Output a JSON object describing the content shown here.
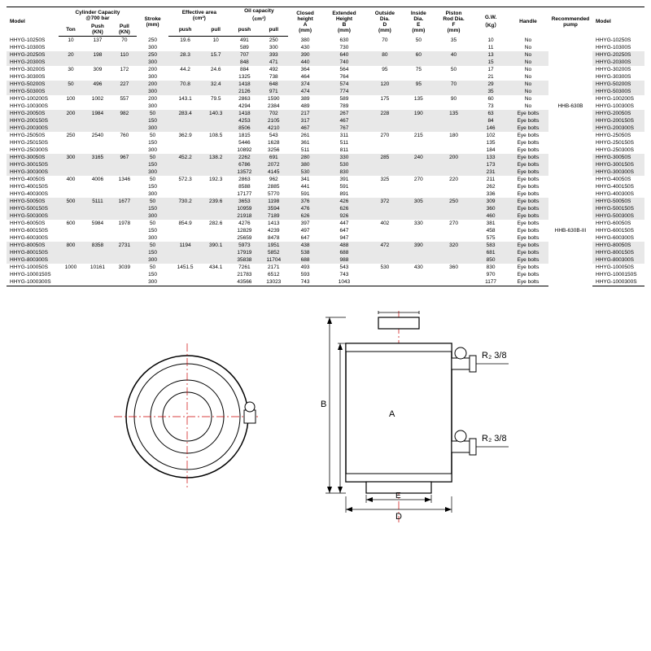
{
  "table": {
    "header1": [
      "Model",
      "Cylinder Capacity\n@700 bar",
      "",
      "",
      "Stroke\n(mm)",
      "Effective area\n(cm²)",
      "",
      "Oil capacity\n（cm³）",
      "",
      "Closed\nheight\nA\n(mm)",
      "Extended\nHeight\nB\n(mm)",
      "Outside\nDia.\nD\n(mm)",
      "Inside\nDia.\nE\n(mm)",
      "Piston\nRod Dia.\nF\n(mm)",
      "G.W.\n（Kg）",
      "Handle",
      "Recommended\npump",
      "Model"
    ],
    "header2": [
      "",
      "Ton",
      "Push\n(KN)",
      "Pull\n(KN)",
      "",
      "push",
      "pull",
      "push",
      "pull",
      "",
      "",
      "",
      "",
      "",
      "",
      "",
      "",
      ""
    ],
    "groups": [
      {
        "alt": false,
        "pump": "",
        "rows": [
          [
            "HHYG-10250S",
            "10",
            "137",
            "70",
            "250",
            "19.6",
            "10",
            "491",
            "250",
            "380",
            "630",
            "70",
            "50",
            "35",
            "10",
            "No",
            "",
            "HHYG-10250S"
          ],
          [
            "HHYG-10300S",
            "",
            "",
            "",
            "300",
            "",
            "",
            "589",
            "300",
            "430",
            "730",
            "",
            "",
            "",
            "11",
            "No",
            "",
            "HHYG-10300S"
          ]
        ]
      },
      {
        "alt": true,
        "pump": "",
        "rows": [
          [
            "HHYG-20250S",
            "20",
            "198",
            "110",
            "250",
            "28.3",
            "15.7",
            "707",
            "393",
            "390",
            "640",
            "80",
            "60",
            "40",
            "13",
            "No",
            "",
            "HHYG-20250S"
          ],
          [
            "HHYG-20300S",
            "",
            "",
            "",
            "300",
            "",
            "",
            "848",
            "471",
            "440",
            "740",
            "",
            "",
            "",
            "15",
            "No",
            "",
            "HHYG-20300S"
          ]
        ]
      },
      {
        "alt": false,
        "pump": "",
        "rows": [
          [
            "HHYG-30200S",
            "30",
            "309",
            "172",
            "200",
            "44.2",
            "24.6",
            "884",
            "492",
            "364",
            "564",
            "95",
            "75",
            "50",
            "17",
            "No",
            "",
            "HHYG-30200S"
          ],
          [
            "HHYG-30300S",
            "",
            "",
            "",
            "300",
            "",
            "",
            "1325",
            "738",
            "464",
            "764",
            "",
            "",
            "",
            "21",
            "No",
            "",
            "HHYG-30300S"
          ]
        ]
      },
      {
        "alt": true,
        "pump": "HHB-630B",
        "rows": [
          [
            "HHYG-50200S",
            "50",
            "496",
            "227",
            "200",
            "70.8",
            "32.4",
            "1418",
            "648",
            "374",
            "574",
            "120",
            "95",
            "70",
            "29",
            "No",
            "",
            "HHYG-50200S"
          ],
          [
            "HHYG-50300S",
            "",
            "",
            "",
            "300",
            "",
            "",
            "2126",
            "971",
            "474",
            "774",
            "",
            "",
            "",
            "35",
            "No",
            "",
            "HHYG-50300S"
          ]
        ]
      },
      {
        "alt": false,
        "pump": "",
        "rows": [
          [
            "HHYG-100200S",
            "100",
            "1002",
            "557",
            "200",
            "143.1",
            "79.5",
            "2863",
            "1590",
            "389",
            "589",
            "175",
            "135",
            "90",
            "60",
            "No",
            "",
            "HHYG-100200S"
          ],
          [
            "HHYG-100300S",
            "",
            "",
            "",
            "300",
            "",
            "",
            "4294",
            "2384",
            "489",
            "789",
            "",
            "",
            "",
            "73",
            "No",
            "",
            "HHYG-100300S"
          ]
        ]
      },
      {
        "alt": true,
        "pump": "",
        "rows": [
          [
            "HHYG-20050S",
            "200",
            "1984",
            "982",
            "50",
            "283.4",
            "140.3",
            "1418",
            "702",
            "217",
            "267",
            "228",
            "190",
            "135",
            "63",
            "Eye bolts",
            "",
            "HHYG-20050S"
          ],
          [
            "HHYG-200150S",
            "",
            "",
            "",
            "150",
            "",
            "",
            "4253",
            "2105",
            "317",
            "467",
            "",
            "",
            "",
            "84",
            "Eye bolts",
            "",
            "HHYG-200150S"
          ],
          [
            "HHYG-200300S",
            "",
            "",
            "",
            "300",
            "",
            "",
            "8506",
            "4210",
            "467",
            "767",
            "",
            "",
            "",
            "146",
            "Eye bolts",
            "",
            "HHYG-200300S"
          ]
        ]
      },
      {
        "alt": false,
        "pump": "",
        "rows": [
          [
            "HHYG-25050S",
            "250",
            "2540",
            "760",
            "50",
            "362.9",
            "108.5",
            "1815",
            "543",
            "261",
            "311",
            "270",
            "215",
            "180",
            "102",
            "Eye bolts",
            "",
            "HHYG-25050S"
          ],
          [
            "HHYG-250150S",
            "",
            "",
            "",
            "150",
            "",
            "",
            "5446",
            "1628",
            "361",
            "511",
            "",
            "",
            "",
            "135",
            "Eye bolts",
            "",
            "HHYG-250150S"
          ],
          [
            "HHYG-250300S",
            "",
            "",
            "",
            "300",
            "",
            "",
            "10892",
            "3256",
            "511",
            "811",
            "",
            "",
            "",
            "184",
            "Eye bolts",
            "",
            "HHYG-250300S"
          ]
        ]
      },
      {
        "alt": true,
        "pump": "",
        "rows": [
          [
            "HHYG-30050S",
            "300",
            "3165",
            "967",
            "50",
            "452.2",
            "138.2",
            "2262",
            "691",
            "280",
            "330",
            "285",
            "240",
            "200",
            "133",
            "Eye bolts",
            "",
            "HHYG-30050S"
          ],
          [
            "HHYG-300150S",
            "",
            "",
            "",
            "150",
            "",
            "",
            "6786",
            "2072",
            "380",
            "530",
            "",
            "",
            "",
            "173",
            "Eye bolts",
            "",
            "HHYG-300150S"
          ],
          [
            "HHYG-300300S",
            "",
            "",
            "",
            "300",
            "",
            "",
            "13572",
            "4145",
            "530",
            "830",
            "",
            "",
            "",
            "231",
            "Eye bolts",
            "",
            "HHYG-300300S"
          ]
        ]
      },
      {
        "alt": false,
        "pump": "HHB-630B-III",
        "rows": [
          [
            "HHYG-40050S",
            "400",
            "4006",
            "1346",
            "50",
            "572.3",
            "192.3",
            "2863",
            "962",
            "341",
            "391",
            "325",
            "270",
            "220",
            "211",
            "Eye bolts",
            "",
            "HHYG-40050S"
          ],
          [
            "HHYG-400150S",
            "",
            "",
            "",
            "150",
            "",
            "",
            "8588",
            "2885",
            "441",
            "591",
            "",
            "",
            "",
            "262",
            "Eye bolts",
            "",
            "HHYG-400150S"
          ],
          [
            "HHYG-400300S",
            "",
            "",
            "",
            "300",
            "",
            "",
            "17177",
            "5770",
            "591",
            "891",
            "",
            "",
            "",
            "336",
            "Eye bolts",
            "",
            "HHYG-400300S"
          ]
        ]
      },
      {
        "alt": true,
        "pump": "",
        "rows": [
          [
            "HHYG-50050S",
            "500",
            "5111",
            "1677",
            "50",
            "730.2",
            "239.6",
            "3653",
            "1198",
            "376",
            "426",
            "372",
            "305",
            "250",
            "309",
            "Eye bolts",
            "",
            "HHYG-50050S"
          ],
          [
            "HHYG-500150S",
            "",
            "",
            "",
            "150",
            "",
            "",
            "10959",
            "3594",
            "476",
            "626",
            "",
            "",
            "",
            "360",
            "Eye bolts",
            "",
            "HHYG-500150S"
          ],
          [
            "HHYG-500300S",
            "",
            "",
            "",
            "300",
            "",
            "",
            "21918",
            "7189",
            "626",
            "926",
            "",
            "",
            "",
            "460",
            "Eye bolts",
            "",
            "HHYG-500300S"
          ]
        ]
      },
      {
        "alt": false,
        "pump": "",
        "rows": [
          [
            "HHYG-60050S",
            "600",
            "5984",
            "1978",
            "50",
            "854.9",
            "282.6",
            "4276",
            "1413",
            "397",
            "447",
            "402",
            "330",
            "270",
            "381",
            "Eye bolts",
            "",
            "HHYG-60050S"
          ],
          [
            "HHYG-600150S",
            "",
            "",
            "",
            "150",
            "",
            "",
            "12829",
            "4239",
            "497",
            "647",
            "",
            "",
            "",
            "458",
            "Eye bolts",
            "",
            "HHYG-600150S"
          ],
          [
            "HHYG-600300S",
            "",
            "",
            "",
            "300",
            "",
            "",
            "25659",
            "8478",
            "647",
            "947",
            "",
            "",
            "",
            "575",
            "Eye bolts",
            "",
            "HHYG-600300S"
          ]
        ]
      },
      {
        "alt": true,
        "pump": "",
        "rows": [
          [
            "HHYG-80050S",
            "800",
            "8358",
            "2731",
            "50",
            "1194",
            "390.1",
            "5973",
            "1951",
            "438",
            "488",
            "472",
            "390",
            "320",
            "583",
            "Eye bolts",
            "",
            "HHYG-80050S"
          ],
          [
            "HHYG-800150S",
            "",
            "",
            "",
            "150",
            "",
            "",
            "17919",
            "5852",
            "538",
            "688",
            "",
            "",
            "",
            "681",
            "Eye bolts",
            "",
            "HHYG-800150S"
          ],
          [
            "HHYG-800300S",
            "",
            "",
            "",
            "300",
            "",
            "",
            "35838",
            "11704",
            "688",
            "988",
            "",
            "",
            "",
            "850",
            "Eye bolts",
            "",
            "HHYG-800300S"
          ]
        ]
      },
      {
        "alt": false,
        "pump": "HHB-630B-III",
        "rows": [
          [
            "HHYG-100050S",
            "1000",
            "10161",
            "3039",
            "50",
            "1451.5",
            "434.1",
            "7261",
            "2171",
            "493",
            "543",
            "530",
            "430",
            "360",
            "830",
            "Eye bolts",
            "",
            "HHYG-100050S"
          ],
          [
            "HHYG-1000150S",
            "",
            "",
            "",
            "150",
            "",
            "",
            "21783",
            "6512",
            "593",
            "743",
            "",
            "",
            "",
            "970",
            "Eye bolts",
            "",
            "HHYG-1000150S"
          ],
          [
            "HHYG-1000300S",
            "",
            "",
            "",
            "300",
            "",
            "",
            "43566",
            "13023",
            "743",
            "1043",
            "",
            "",
            "",
            "1177",
            "Eye bolts",
            "",
            "HHYG-1000300S"
          ]
        ]
      }
    ]
  },
  "diagram": {
    "labels": {
      "F": "F",
      "B": "B",
      "A": "A",
      "D": "D",
      "E": "E",
      "R1": "R₂ 3/8",
      "R2": "R₂ 3/8"
    }
  }
}
